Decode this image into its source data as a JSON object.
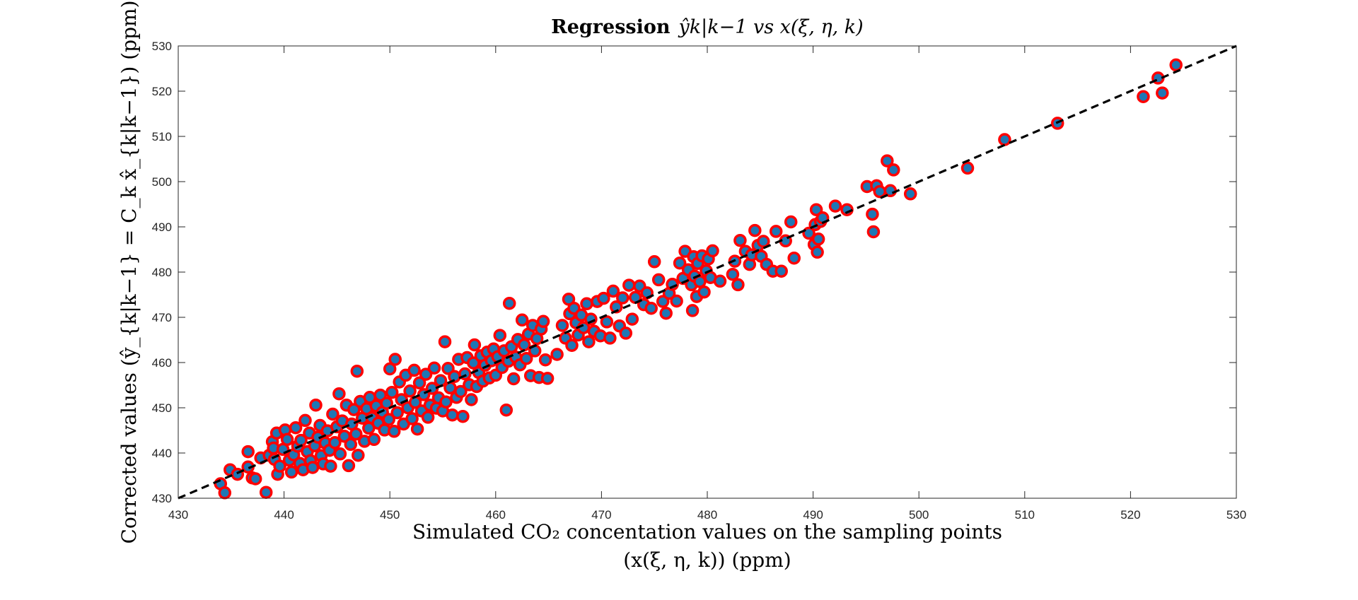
{
  "chart_data": {
    "type": "scatter",
    "title": "Regression ŷ_{k|k−1} vs x(ξ, η, k)",
    "title_parts": {
      "bold": "Regression",
      "math": "ŷk|k−1 vs x(ξ, η, k)"
    },
    "xlabel": "Simulated CO₂ concentation values on the sampling points (x(ξ, η, k)) (ppm)",
    "xlabel_lines": [
      "Simulated CO₂ concentation values on the sampling points",
      "(x(ξ, η, k)) (ppm)"
    ],
    "ylabel": "Corrected values (ŷ_{k|k−1} = C_k x̂_{k|k−1}) (ppm)",
    "xlim": [
      430,
      530
    ],
    "ylim": [
      430,
      530
    ],
    "xticks": [
      430,
      440,
      450,
      460,
      470,
      480,
      490,
      500,
      510,
      520,
      530
    ],
    "yticks": [
      430,
      440,
      450,
      460,
      470,
      480,
      490,
      500,
      510,
      520,
      530
    ],
    "grid": false,
    "legend": "none",
    "reference_line": {
      "style": "dashed",
      "color": "#000000",
      "from": [
        430,
        430
      ],
      "to": [
        530,
        530
      ]
    },
    "marker": {
      "face": "#1f77b4",
      "edge": "#ff0000"
    },
    "points": [
      [
        434.0,
        433.2
      ],
      [
        434.4,
        431.2
      ],
      [
        434.9,
        436.3
      ],
      [
        435.6,
        435.3
      ],
      [
        436.6,
        440.3
      ],
      [
        437.0,
        434.5
      ],
      [
        436.6,
        436.9
      ],
      [
        437.3,
        434.3
      ],
      [
        437.8,
        438.9
      ],
      [
        438.3,
        431.3
      ],
      [
        438.6,
        439.5
      ],
      [
        438.9,
        442.5
      ],
      [
        439.0,
        441.1
      ],
      [
        439.1,
        438.6
      ],
      [
        439.3,
        444.4
      ],
      [
        439.4,
        435.3
      ],
      [
        439.6,
        437.1
      ],
      [
        439.9,
        440.8
      ],
      [
        440.1,
        445.1
      ],
      [
        440.3,
        443.0
      ],
      [
        440.5,
        438.4
      ],
      [
        440.7,
        435.8
      ],
      [
        440.9,
        439.6
      ],
      [
        441.1,
        445.6
      ],
      [
        441.3,
        441.5
      ],
      [
        441.5,
        437.7
      ],
      [
        441.6,
        442.8
      ],
      [
        441.8,
        436.3
      ],
      [
        442.0,
        447.2
      ],
      [
        442.2,
        440.3
      ],
      [
        442.4,
        444.4
      ],
      [
        442.5,
        438.3
      ],
      [
        442.7,
        436.8
      ],
      [
        442.9,
        441.6
      ],
      [
        443.0,
        450.6
      ],
      [
        443.2,
        443.5
      ],
      [
        443.4,
        446.1
      ],
      [
        443.5,
        439.4
      ],
      [
        443.7,
        437.6
      ],
      [
        443.9,
        442.2
      ],
      [
        444.1,
        444.9
      ],
      [
        444.3,
        440.6
      ],
      [
        444.4,
        437.1
      ],
      [
        444.6,
        448.6
      ],
      [
        444.8,
        442.3
      ],
      [
        445.0,
        445.8
      ],
      [
        445.2,
        453.1
      ],
      [
        445.3,
        439.8
      ],
      [
        445.5,
        447.1
      ],
      [
        445.7,
        443.7
      ],
      [
        445.9,
        450.6
      ],
      [
        446.1,
        437.2
      ],
      [
        446.3,
        441.9
      ],
      [
        446.4,
        446.4
      ],
      [
        446.6,
        449.6
      ],
      [
        446.8,
        444.2
      ],
      [
        446.9,
        458.1
      ],
      [
        447.0,
        439.5
      ],
      [
        447.2,
        451.4
      ],
      [
        447.4,
        447.7
      ],
      [
        447.6,
        442.6
      ],
      [
        447.8,
        449.8
      ],
      [
        448.0,
        445.5
      ],
      [
        448.1,
        452.3
      ],
      [
        448.3,
        447.8
      ],
      [
        448.5,
        443.0
      ],
      [
        448.7,
        450.4
      ],
      [
        448.9,
        446.6
      ],
      [
        449.1,
        452.8
      ],
      [
        449.3,
        449.0
      ],
      [
        449.5,
        445.1
      ],
      [
        449.7,
        451.0
      ],
      [
        449.9,
        447.4
      ],
      [
        450.0,
        458.6
      ],
      [
        450.2,
        453.4
      ],
      [
        450.4,
        444.8
      ],
      [
        450.5,
        460.7
      ],
      [
        450.7,
        448.9
      ],
      [
        450.9,
        455.7
      ],
      [
        451.1,
        451.8
      ],
      [
        451.3,
        446.4
      ],
      [
        451.5,
        457.2
      ],
      [
        451.7,
        450.0
      ],
      [
        451.9,
        453.7
      ],
      [
        452.1,
        447.6
      ],
      [
        452.3,
        458.3
      ],
      [
        452.4,
        451.2
      ],
      [
        452.6,
        445.3
      ],
      [
        452.8,
        455.5
      ],
      [
        453.0,
        449.3
      ],
      [
        453.2,
        452.9
      ],
      [
        453.4,
        457.4
      ],
      [
        453.6,
        447.9
      ],
      [
        453.8,
        450.6
      ],
      [
        454.0,
        454.3
      ],
      [
        454.2,
        458.8
      ],
      [
        454.4,
        449.9
      ],
      [
        454.6,
        452.2
      ],
      [
        454.8,
        456.0
      ],
      [
        455.0,
        449.3
      ],
      [
        455.2,
        464.6
      ],
      [
        455.3,
        451.3
      ],
      [
        455.5,
        458.7
      ],
      [
        455.7,
        454.4
      ],
      [
        455.9,
        448.4
      ],
      [
        456.1,
        456.9
      ],
      [
        456.3,
        452.3
      ],
      [
        456.5,
        460.7
      ],
      [
        456.7,
        453.6
      ],
      [
        456.9,
        448.1
      ],
      [
        457.1,
        457.5
      ],
      [
        457.3,
        461.1
      ],
      [
        457.5,
        455.1
      ],
      [
        457.7,
        451.8
      ],
      [
        457.9,
        459.9
      ],
      [
        458.0,
        463.9
      ],
      [
        458.2,
        454.7
      ],
      [
        458.4,
        457.8
      ],
      [
        458.6,
        461.5
      ],
      [
        458.8,
        455.9
      ],
      [
        459.0,
        459.4
      ],
      [
        459.2,
        462.3
      ],
      [
        459.4,
        456.6
      ],
      [
        459.6,
        460.4
      ],
      [
        459.8,
        463.0
      ],
      [
        460.0,
        457.2
      ],
      [
        460.2,
        461.3
      ],
      [
        460.4,
        466.0
      ],
      [
        460.6,
        458.9
      ],
      [
        460.8,
        462.6
      ],
      [
        461.0,
        449.5
      ],
      [
        461.2,
        460.3
      ],
      [
        461.3,
        473.1
      ],
      [
        461.5,
        463.5
      ],
      [
        461.7,
        456.4
      ],
      [
        461.9,
        461.2
      ],
      [
        462.1,
        465.1
      ],
      [
        462.3,
        459.5
      ],
      [
        462.5,
        469.4
      ],
      [
        462.7,
        463.9
      ],
      [
        462.9,
        460.9
      ],
      [
        463.1,
        466.3
      ],
      [
        463.3,
        457.1
      ],
      [
        463.5,
        468.2
      ],
      [
        463.7,
        462.6
      ],
      [
        463.9,
        465.3
      ],
      [
        464.1,
        456.7
      ],
      [
        464.3,
        467.4
      ],
      [
        464.5,
        469.1
      ],
      [
        464.7,
        460.6
      ],
      [
        464.9,
        456.5
      ],
      [
        465.8,
        461.8
      ],
      [
        466.3,
        468.2
      ],
      [
        466.6,
        465.4
      ],
      [
        466.9,
        474.0
      ],
      [
        467.0,
        470.8
      ],
      [
        467.2,
        463.8
      ],
      [
        467.4,
        472.0
      ],
      [
        467.6,
        468.8
      ],
      [
        467.8,
        466.1
      ],
      [
        468.1,
        470.5
      ],
      [
        468.3,
        467.7
      ],
      [
        468.6,
        473.0
      ],
      [
        468.8,
        464.6
      ],
      [
        469.0,
        469.6
      ],
      [
        469.3,
        466.9
      ],
      [
        469.6,
        473.5
      ],
      [
        469.9,
        465.9
      ],
      [
        470.2,
        474.2
      ],
      [
        470.5,
        469.0
      ],
      [
        470.8,
        465.4
      ],
      [
        471.1,
        475.8
      ],
      [
        471.4,
        472.3
      ],
      [
        471.7,
        468.1
      ],
      [
        472.0,
        474.3
      ],
      [
        472.3,
        466.5
      ],
      [
        472.6,
        477.1
      ],
      [
        472.9,
        469.6
      ],
      [
        473.2,
        474.4
      ],
      [
        473.6,
        476.9
      ],
      [
        474.0,
        472.8
      ],
      [
        474.3,
        475.4
      ],
      [
        474.7,
        472.0
      ],
      [
        475.0,
        482.3
      ],
      [
        475.4,
        478.3
      ],
      [
        475.8,
        473.5
      ],
      [
        476.1,
        470.9
      ],
      [
        476.4,
        475.3
      ],
      [
        476.7,
        477.3
      ],
      [
        477.1,
        473.6
      ],
      [
        477.4,
        482.0
      ],
      [
        477.7,
        478.6
      ],
      [
        477.9,
        484.6
      ],
      [
        478.2,
        480.5
      ],
      [
        478.5,
        477.2
      ],
      [
        478.6,
        471.5
      ],
      [
        478.7,
        483.4
      ],
      [
        478.8,
        479.1
      ],
      [
        479.0,
        474.6
      ],
      [
        479.1,
        481.9
      ],
      [
        479.3,
        477.9
      ],
      [
        479.5,
        483.6
      ],
      [
        479.7,
        475.6
      ],
      [
        479.9,
        480.3
      ],
      [
        480.1,
        482.9
      ],
      [
        480.3,
        478.8
      ],
      [
        480.5,
        484.7
      ],
      [
        481.2,
        478.0
      ],
      [
        482.4,
        479.5
      ],
      [
        482.6,
        482.4
      ],
      [
        482.9,
        477.2
      ],
      [
        483.1,
        487.0
      ],
      [
        483.6,
        484.6
      ],
      [
        484.0,
        481.7
      ],
      [
        484.2,
        483.8
      ],
      [
        484.5,
        489.2
      ],
      [
        484.8,
        485.9
      ],
      [
        485.1,
        483.5
      ],
      [
        485.3,
        486.8
      ],
      [
        485.6,
        481.7
      ],
      [
        486.2,
        480.2
      ],
      [
        486.5,
        489.0
      ],
      [
        487.0,
        480.2
      ],
      [
        487.4,
        486.9
      ],
      [
        487.9,
        491.1
      ],
      [
        488.2,
        483.1
      ],
      [
        489.6,
        488.6
      ],
      [
        490.1,
        486.1
      ],
      [
        490.2,
        490.5
      ],
      [
        490.3,
        493.8
      ],
      [
        490.4,
        484.4
      ],
      [
        490.5,
        487.3
      ],
      [
        490.7,
        491.2
      ],
      [
        490.9,
        492.0
      ],
      [
        492.1,
        494.6
      ],
      [
        493.2,
        493.8
      ],
      [
        495.1,
        498.9
      ],
      [
        495.6,
        492.8
      ],
      [
        495.7,
        488.9
      ],
      [
        496.0,
        499.1
      ],
      [
        496.3,
        497.8
      ],
      [
        497.0,
        504.6
      ],
      [
        497.3,
        498.0
      ],
      [
        497.6,
        502.6
      ],
      [
        499.2,
        497.3
      ],
      [
        504.6,
        503.0
      ],
      [
        508.1,
        509.3
      ],
      [
        513.1,
        512.9
      ],
      [
        521.2,
        518.8
      ],
      [
        522.6,
        522.9
      ],
      [
        523.0,
        519.6
      ],
      [
        524.3,
        525.8
      ]
    ]
  }
}
